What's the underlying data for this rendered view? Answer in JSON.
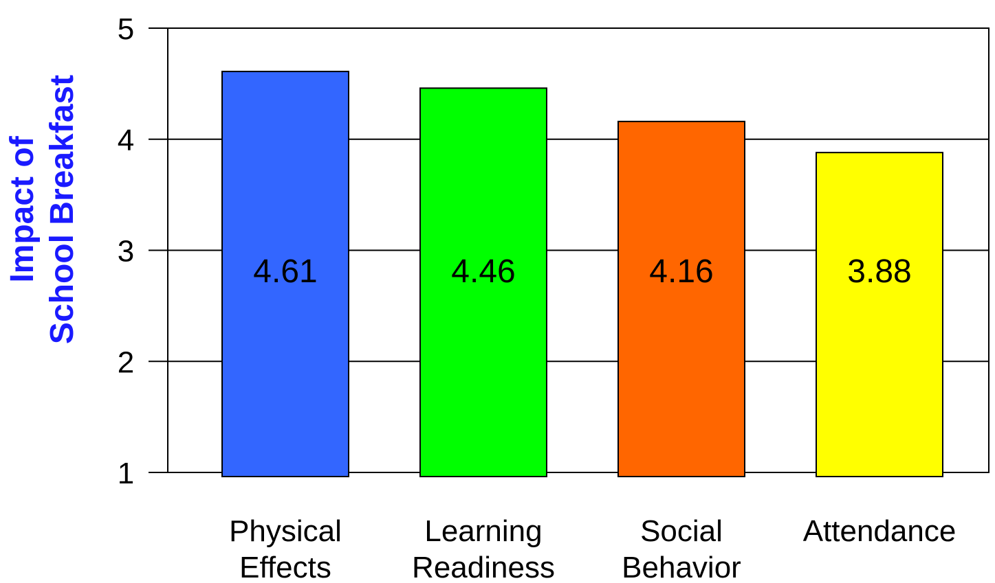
{
  "chart_data": {
    "type": "bar",
    "title": "",
    "xlabel": "",
    "ylabel": [
      "Impact of",
      "School Breakfast"
    ],
    "ylabel_color": "#1a1aff",
    "ylim": [
      1,
      5
    ],
    "yticks": [
      1,
      2,
      3,
      4,
      5
    ],
    "grid": true,
    "categories": [
      [
        "Physical",
        "Effects"
      ],
      [
        "Learning",
        "Readiness"
      ],
      [
        "Social",
        "Behavior"
      ],
      [
        "Attendance"
      ]
    ],
    "values": [
      4.61,
      4.46,
      4.16,
      3.88
    ],
    "value_labels": [
      "4.61",
      "4.46",
      "4.16",
      "3.88"
    ],
    "colors": [
      "#3366ff",
      "#00ff00",
      "#ff6600",
      "#ffff00"
    ]
  }
}
